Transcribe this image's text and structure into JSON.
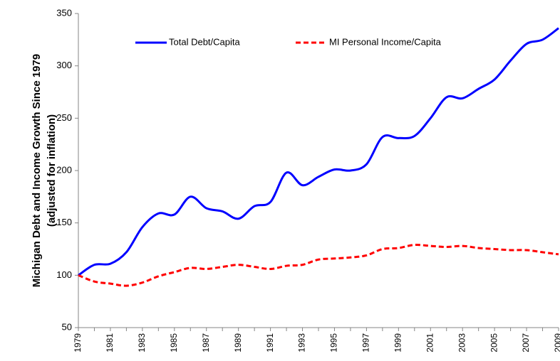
{
  "chart_data": {
    "type": "line",
    "y_axis_label": [
      "Michigan Debt and Income Growth Since 1979",
      "(adjusted for inflation)"
    ],
    "categories": [
      "1979",
      null,
      "1981",
      null,
      "1983",
      null,
      "1985",
      null,
      "1987",
      null,
      "1989",
      null,
      "1991",
      null,
      "1993",
      null,
      "1995",
      null,
      "1997",
      null,
      "1999",
      null,
      "2001",
      null,
      "2003",
      null,
      "2005",
      null,
      "2007",
      null,
      "2009"
    ],
    "series": [
      {
        "name": "Total Debt/Capita",
        "color": "#0000ff",
        "dashed": false,
        "values": [
          100,
          110,
          111,
          122,
          146,
          159,
          158,
          175,
          164,
          161,
          154,
          166,
          170,
          198,
          186,
          194,
          201,
          200,
          206,
          232,
          231,
          233,
          250,
          270,
          269,
          278,
          287,
          305,
          321,
          325,
          336
        ]
      },
      {
        "name": "MI Personal Income/Capita",
        "color": "#ff0000",
        "dashed": true,
        "values": [
          100,
          94,
          92,
          90,
          93,
          99,
          103,
          107,
          106,
          108,
          110,
          108,
          106,
          109,
          110,
          115,
          116,
          117,
          119,
          125,
          126,
          129,
          128,
          127,
          128,
          126,
          125,
          124,
          124,
          122,
          120
        ]
      }
    ],
    "ylim": [
      50,
      350
    ],
    "yticks": [
      50,
      100,
      150,
      200,
      250,
      300,
      350
    ],
    "grid": false
  }
}
